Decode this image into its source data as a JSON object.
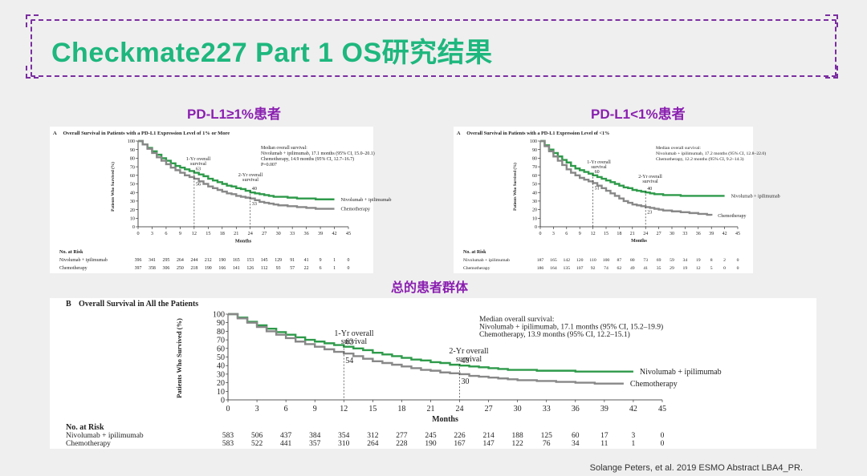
{
  "slide": {
    "title": "Checkmate227 Part 1 OS研究结果",
    "subtitle_left": "PD-L1≥1%患者",
    "subtitle_right": "PD-L1<1%患者",
    "subtitle_bottom": "总的患者群体",
    "footer": "Solange Peters, et al. 2019 ESMO Abstract LBA4_PR.",
    "accent_color": "#1eb77e",
    "label_color": "#8a1fb0"
  },
  "chart_data": [
    {
      "id": "A1",
      "type": "line",
      "panel_label": "A",
      "title": "Overall Survival in Patients with a PD-L1 Expression Level of 1% or More",
      "xlabel": "Months",
      "ylabel": "Patients Who Survived (%)",
      "xlim": [
        0,
        45
      ],
      "ylim": [
        0,
        100
      ],
      "xticks": [
        0,
        3,
        6,
        9,
        12,
        15,
        18,
        21,
        24,
        27,
        30,
        33,
        36,
        39,
        42,
        45
      ],
      "yticks": [
        0,
        10,
        20,
        30,
        40,
        50,
        60,
        70,
        80,
        90,
        100
      ],
      "annotation": [
        "Median overall survival:",
        "Nivolumab + ipilimumab, 17.1 months (95% CI, 15.0–20.1)",
        "Chemotherapy, 14.9 months (95% CI, 12.7–16.7)",
        "P=0.007"
      ],
      "milestones": [
        {
          "label": [
            "1-Yr overall",
            "survival"
          ],
          "x": 12,
          "nivo": 63,
          "chemo": 56
        },
        {
          "label": [
            "2-Yr overall",
            "survival"
          ],
          "x": 24,
          "nivo": 40,
          "chemo": 33
        }
      ],
      "series": [
        {
          "name": "Nivolumab + ipilimumab",
          "color": "#2e9a4a",
          "x": [
            0,
            1,
            2,
            3,
            4,
            5,
            6,
            7,
            8,
            9,
            10,
            11,
            12,
            13,
            14,
            15,
            16,
            17,
            18,
            19,
            20,
            21,
            22,
            23,
            24,
            25,
            26,
            27,
            28,
            29,
            30,
            32,
            34,
            36,
            38,
            40,
            42
          ],
          "y": [
            100,
            96,
            92,
            88,
            84,
            80,
            77,
            74,
            71,
            69,
            67,
            65,
            63,
            61,
            59,
            56,
            54,
            52,
            50,
            48,
            47,
            45,
            44,
            42,
            40,
            39,
            38,
            37,
            36,
            35,
            35,
            34,
            33,
            33,
            32,
            32,
            32
          ]
        },
        {
          "name": "Chemotherapy",
          "color": "#888888",
          "x": [
            0,
            1,
            2,
            3,
            4,
            5,
            6,
            7,
            8,
            9,
            10,
            11,
            12,
            13,
            14,
            15,
            16,
            17,
            18,
            19,
            20,
            21,
            22,
            23,
            24,
            25,
            26,
            27,
            28,
            29,
            30,
            32,
            34,
            36,
            38,
            40,
            42
          ],
          "y": [
            100,
            96,
            91,
            86,
            81,
            77,
            73,
            69,
            66,
            63,
            60,
            58,
            56,
            53,
            50,
            47,
            45,
            43,
            41,
            39,
            38,
            36,
            35,
            34,
            33,
            31,
            29,
            28,
            27,
            26,
            25,
            24,
            23,
            22,
            21,
            21,
            21
          ]
        }
      ],
      "risk": {
        "header": "No. at Risk",
        "rows": [
          {
            "label": "Nivolumab + ipilimumab",
            "values": [
              "396",
              "341",
              "295",
              "264",
              "244",
              "212",
              "190",
              "165",
              "153",
              "145",
              "129",
              "91",
              "41",
              "9",
              "1",
              "0"
            ]
          },
          {
            "label": "Chemotherapy",
            "values": [
              "397",
              "358",
              "306",
              "250",
              "218",
              "190",
              "166",
              "141",
              "126",
              "112",
              "93",
              "57",
              "22",
              "6",
              "1",
              "0"
            ]
          }
        ]
      }
    },
    {
      "id": "A2",
      "type": "line",
      "panel_label": "A",
      "title": "Overall Survival in Patients with a PD-L1 Expression Level of <1%",
      "xlabel": "Months",
      "ylabel": "Patients Who Survived (%)",
      "xlim": [
        0,
        45
      ],
      "ylim": [
        0,
        100
      ],
      "xticks": [
        0,
        3,
        6,
        9,
        12,
        15,
        18,
        21,
        24,
        27,
        30,
        33,
        36,
        39,
        42,
        45
      ],
      "yticks": [
        0,
        10,
        20,
        30,
        40,
        50,
        60,
        70,
        80,
        90,
        100
      ],
      "annotation": [
        "Median overall survival:",
        "Nivolumab + ipilimumab, 17.2 months (95% CI, 12.8–22.0)",
        "Chemotherapy, 12.2 months (95% CI, 9.2–14.3)"
      ],
      "milestones": [
        {
          "label": [
            "1-Yr overall",
            "survival"
          ],
          "x": 12,
          "nivo": 60,
          "chemo": 51
        },
        {
          "label": [
            "2-Yr overall",
            "survival"
          ],
          "x": 24,
          "nivo": 40,
          "chemo": 23
        }
      ],
      "series": [
        {
          "name": "Nivolumab + ipilimumab",
          "color": "#2e9a4a",
          "x": [
            0,
            1,
            2,
            3,
            4,
            5,
            6,
            7,
            8,
            9,
            10,
            11,
            12,
            13,
            14,
            15,
            16,
            17,
            18,
            19,
            20,
            21,
            22,
            23,
            24,
            25,
            26,
            27,
            28,
            30,
            32,
            34,
            36,
            38,
            40,
            42
          ],
          "y": [
            100,
            95,
            90,
            86,
            82,
            78,
            75,
            71,
            68,
            66,
            64,
            62,
            60,
            58,
            56,
            54,
            52,
            50,
            48,
            46,
            45,
            43,
            42,
            41,
            40,
            39,
            38,
            38,
            37,
            37,
            36,
            36,
            36,
            36,
            36,
            36
          ]
        },
        {
          "name": "Chemotherapy",
          "color": "#888888",
          "x": [
            0,
            1,
            2,
            3,
            4,
            5,
            6,
            7,
            8,
            9,
            10,
            11,
            12,
            13,
            14,
            15,
            16,
            17,
            18,
            19,
            20,
            21,
            22,
            23,
            24,
            25,
            26,
            27,
            28,
            30,
            32,
            34,
            36,
            38,
            39
          ],
          "y": [
            100,
            94,
            88,
            82,
            77,
            72,
            67,
            63,
            60,
            57,
            55,
            53,
            51,
            48,
            45,
            42,
            39,
            36,
            33,
            30,
            28,
            26,
            25,
            24,
            23,
            22,
            21,
            20,
            19,
            18,
            17,
            16,
            15,
            14,
            13
          ]
        }
      ],
      "risk": {
        "header": "No. at Risk",
        "rows": [
          {
            "label": "Nivolumab + ipilimumab",
            "values": [
              "187",
              "165",
              "142",
              "120",
              "110",
              "100",
              "87",
              "80",
              "73",
              "69",
              "59",
              "34",
              "19",
              "8",
              "2",
              "0"
            ]
          },
          {
            "label": "Chemotherapy",
            "values": [
              "186",
              "164",
              "135",
              "107",
              "92",
              "74",
              "62",
              "49",
              "41",
              "35",
              "29",
              "19",
              "12",
              "5",
              "0",
              "0"
            ]
          }
        ]
      }
    },
    {
      "id": "B",
      "type": "line",
      "panel_label": "B",
      "title": "Overall Survival in All the Patients",
      "xlabel": "Months",
      "ylabel": "Patients Who Survived (%)",
      "xlim": [
        0,
        45
      ],
      "ylim": [
        0,
        100
      ],
      "xticks": [
        0,
        3,
        6,
        9,
        12,
        15,
        18,
        21,
        24,
        27,
        30,
        33,
        36,
        39,
        42,
        45
      ],
      "yticks": [
        0,
        10,
        20,
        30,
        40,
        50,
        60,
        70,
        80,
        90,
        100
      ],
      "annotation": [
        "Median overall survival:",
        "Nivolumab + ipilimumab, 17.1 months (95% CI, 15.2–19.9)",
        "Chemotherapy, 13.9 months (95% CI, 12.2–15.1)"
      ],
      "milestones": [
        {
          "label": [
            "1-Yr overall",
            "survival"
          ],
          "x": 12,
          "nivo": 62,
          "chemo": 54
        },
        {
          "label": [
            "2-Yr overall",
            "survival"
          ],
          "x": 24,
          "nivo": 40,
          "chemo": 30
        }
      ],
      "series": [
        {
          "name": "Nivolumab + ipilimumab",
          "color": "#2e9a4a",
          "x": [
            0,
            1,
            2,
            3,
            4,
            5,
            6,
            7,
            8,
            9,
            10,
            11,
            12,
            13,
            14,
            15,
            16,
            17,
            18,
            19,
            20,
            21,
            22,
            23,
            24,
            25,
            26,
            27,
            28,
            29,
            30,
            32,
            34,
            36,
            38,
            40,
            42
          ],
          "y": [
            100,
            96,
            91,
            87,
            83,
            79,
            76,
            73,
            70,
            68,
            66,
            64,
            62,
            60,
            58,
            55,
            53,
            51,
            49,
            47,
            46,
            44,
            43,
            41,
            40,
            39,
            38,
            37,
            36,
            35,
            35,
            34,
            34,
            33,
            33,
            33,
            33
          ]
        },
        {
          "name": "Chemotherapy",
          "color": "#888888",
          "x": [
            0,
            1,
            2,
            3,
            4,
            5,
            6,
            7,
            8,
            9,
            10,
            11,
            12,
            13,
            14,
            15,
            16,
            17,
            18,
            19,
            20,
            21,
            22,
            23,
            24,
            25,
            26,
            27,
            28,
            29,
            30,
            32,
            34,
            36,
            38,
            40,
            41
          ],
          "y": [
            100,
            95,
            90,
            85,
            80,
            76,
            72,
            68,
            65,
            62,
            59,
            56,
            54,
            51,
            48,
            45,
            43,
            41,
            39,
            37,
            35,
            34,
            32,
            31,
            30,
            28,
            27,
            26,
            25,
            24,
            23,
            22,
            21,
            20,
            19,
            19,
            19
          ]
        }
      ],
      "risk": {
        "header": "No. at Risk",
        "rows": [
          {
            "label": "Nivolumab + ipilimumab",
            "values": [
              "583",
              "506",
              "437",
              "384",
              "354",
              "312",
              "277",
              "245",
              "226",
              "214",
              "188",
              "125",
              "60",
              "17",
              "3",
              "0"
            ]
          },
          {
            "label": "Chemotherapy",
            "values": [
              "583",
              "522",
              "441",
              "357",
              "310",
              "264",
              "228",
              "190",
              "167",
              "147",
              "122",
              "76",
              "34",
              "11",
              "1",
              "0"
            ]
          }
        ]
      }
    }
  ]
}
